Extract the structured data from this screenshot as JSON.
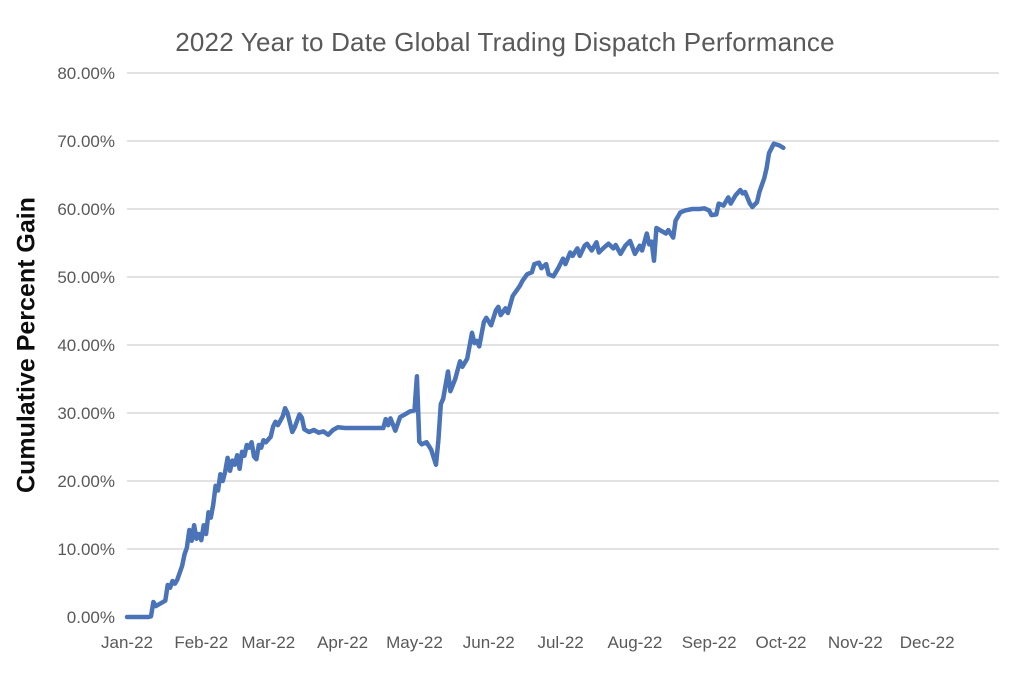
{
  "chart_data": {
    "type": "line",
    "title": "2022 Year to Date Global Trading Dispatch Performance",
    "xlabel": "",
    "ylabel": "Cumulative Percent Gain",
    "ylim": [
      0,
      80
    ],
    "y_tick_labels": [
      "0.00%",
      "10.00%",
      "20.00%",
      "30.00%",
      "40.00%",
      "50.00%",
      "60.00%",
      "70.00%",
      "80.00%"
    ],
    "x_tick_labels": [
      "Jan-22",
      "Feb-22",
      "Mar-22",
      "Apr-22",
      "May-22",
      "Jun-22",
      "Jul-22",
      "Aug-22",
      "Sep-22",
      "Oct-22",
      "Nov-22",
      "Dec-22"
    ],
    "x_tick_days": [
      0,
      31,
      59,
      90,
      120,
      151,
      181,
      212,
      243,
      273,
      304,
      334
    ],
    "x_range_days": [
      0,
      364
    ],
    "grid": "horizontal-only, no gridline at 0%",
    "legend": "none",
    "colors": {
      "line": "#4a73b8",
      "grid": "#d9d9d9",
      "title": "#595959",
      "tick_labels": "#595959",
      "axis_title": "#0d0d0d",
      "background": "#ffffff"
    },
    "series": [
      {
        "name": "Cumulative Percent Gain",
        "units": "percent",
        "points_format": "[day_of_year_2022, cumulative_gain_percent]",
        "points": [
          [
            0,
            0
          ],
          [
            5,
            0
          ],
          [
            9,
            0
          ],
          [
            10,
            0.1
          ],
          [
            11,
            2.2
          ],
          [
            12,
            1.6
          ],
          [
            13,
            1.8
          ],
          [
            16,
            2.4
          ],
          [
            17,
            4.7
          ],
          [
            18,
            4.3
          ],
          [
            19,
            5.3
          ],
          [
            20,
            4.9
          ],
          [
            21,
            5.5
          ],
          [
            23,
            7.5
          ],
          [
            24,
            9.2
          ],
          [
            25,
            10.2
          ],
          [
            26,
            12.8
          ],
          [
            27,
            11.2
          ],
          [
            28,
            13.5
          ],
          [
            29,
            11.5
          ],
          [
            30,
            12.2
          ],
          [
            31,
            11.3
          ],
          [
            32,
            13.5
          ],
          [
            33,
            12.2
          ],
          [
            34,
            15.4
          ],
          [
            35,
            14.6
          ],
          [
            36,
            16.5
          ],
          [
            37,
            19.3
          ],
          [
            38,
            18.6
          ],
          [
            39,
            21.0
          ],
          [
            40,
            20.0
          ],
          [
            41,
            21.4
          ],
          [
            42,
            23.4
          ],
          [
            43,
            21.5
          ],
          [
            44,
            23.0
          ],
          [
            45,
            22.4
          ],
          [
            46,
            23.8
          ],
          [
            47,
            21.8
          ],
          [
            48,
            24.3
          ],
          [
            49,
            23.7
          ],
          [
            50,
            25.3
          ],
          [
            51,
            24.9
          ],
          [
            52,
            25.7
          ],
          [
            53,
            23.6
          ],
          [
            54,
            23.2
          ],
          [
            55,
            25.3
          ],
          [
            56,
            24.9
          ],
          [
            57,
            26.0
          ],
          [
            58,
            25.7
          ],
          [
            60,
            26.5
          ],
          [
            61,
            28.0
          ],
          [
            62,
            28.7
          ],
          [
            63,
            28.2
          ],
          [
            65,
            29.5
          ],
          [
            66,
            30.7
          ],
          [
            67,
            30.0
          ],
          [
            69,
            27.2
          ],
          [
            70,
            27.9
          ],
          [
            72,
            29.8
          ],
          [
            73,
            29.3
          ],
          [
            74,
            27.6
          ],
          [
            76,
            27.2
          ],
          [
            78,
            27.5
          ],
          [
            80,
            27.1
          ],
          [
            82,
            27.3
          ],
          [
            84,
            26.8
          ],
          [
            86,
            27.5
          ],
          [
            88,
            27.9
          ],
          [
            91,
            27.8
          ],
          [
            95,
            27.8
          ],
          [
            99,
            27.8
          ],
          [
            103,
            27.8
          ],
          [
            107,
            27.8
          ],
          [
            108,
            29.1
          ],
          [
            109,
            28.2
          ],
          [
            110,
            29.2
          ],
          [
            112,
            27.4
          ],
          [
            114,
            29.4
          ],
          [
            116,
            29.8
          ],
          [
            118,
            30.2
          ],
          [
            120,
            30.4
          ],
          [
            121,
            35.4
          ],
          [
            122,
            25.8
          ],
          [
            123,
            25.4
          ],
          [
            125,
            25.7
          ],
          [
            127,
            24.6
          ],
          [
            129,
            22.4
          ],
          [
            130,
            26.0
          ],
          [
            131,
            31.3
          ],
          [
            132,
            32.1
          ],
          [
            134,
            36.1
          ],
          [
            135,
            33.2
          ],
          [
            137,
            35.0
          ],
          [
            139,
            37.6
          ],
          [
            140,
            36.8
          ],
          [
            142,
            38.0
          ],
          [
            144,
            41.8
          ],
          [
            145,
            40.3
          ],
          [
            146,
            40.6
          ],
          [
            147,
            39.8
          ],
          [
            149,
            43.4
          ],
          [
            150,
            44.0
          ],
          [
            152,
            42.9
          ],
          [
            154,
            45.1
          ],
          [
            155,
            45.6
          ],
          [
            156,
            44.4
          ],
          [
            158,
            45.4
          ],
          [
            159,
            44.7
          ],
          [
            161,
            47.2
          ],
          [
            164,
            48.7
          ],
          [
            165,
            49.4
          ],
          [
            167,
            50.4
          ],
          [
            169,
            50.7
          ],
          [
            170,
            51.9
          ],
          [
            172,
            52.1
          ],
          [
            173,
            51.3
          ],
          [
            175,
            51.9
          ],
          [
            176,
            50.4
          ],
          [
            178,
            50.1
          ],
          [
            180,
            51.3
          ],
          [
            182,
            52.7
          ],
          [
            183,
            51.9
          ],
          [
            185,
            53.6
          ],
          [
            186,
            53.1
          ],
          [
            188,
            54.2
          ],
          [
            189,
            53.1
          ],
          [
            191,
            54.6
          ],
          [
            192,
            54.9
          ],
          [
            194,
            53.9
          ],
          [
            196,
            55.1
          ],
          [
            197,
            53.6
          ],
          [
            199,
            54.3
          ],
          [
            201,
            54.9
          ],
          [
            203,
            54.2
          ],
          [
            204,
            54.7
          ],
          [
            206,
            53.4
          ],
          [
            208,
            54.6
          ],
          [
            210,
            55.3
          ],
          [
            212,
            53.4
          ],
          [
            214,
            54.6
          ],
          [
            215,
            53.9
          ],
          [
            217,
            56.4
          ],
          [
            218,
            54.8
          ],
          [
            219,
            55.2
          ],
          [
            220,
            52.4
          ],
          [
            221,
            57.2
          ],
          [
            223,
            56.8
          ],
          [
            225,
            56.4
          ],
          [
            226,
            56.9
          ],
          [
            228,
            55.8
          ],
          [
            229,
            58.3
          ],
          [
            231,
            59.5
          ],
          [
            233,
            59.8
          ],
          [
            236,
            60.0
          ],
          [
            239,
            60.0
          ],
          [
            241,
            60.1
          ],
          [
            243,
            59.8
          ],
          [
            244,
            59.1
          ],
          [
            246,
            59.2
          ],
          [
            247,
            60.8
          ],
          [
            249,
            60.5
          ],
          [
            251,
            61.7
          ],
          [
            252,
            60.8
          ],
          [
            254,
            62.0
          ],
          [
            256,
            62.8
          ],
          [
            257,
            62.3
          ],
          [
            258,
            62.5
          ],
          [
            260,
            60.8
          ],
          [
            261,
            60.3
          ],
          [
            263,
            61.0
          ],
          [
            264,
            62.5
          ],
          [
            266,
            64.5
          ],
          [
            267,
            66.0
          ],
          [
            268,
            68.2
          ],
          [
            270,
            69.6
          ],
          [
            272,
            69.4
          ],
          [
            274,
            69.0
          ]
        ]
      }
    ]
  }
}
